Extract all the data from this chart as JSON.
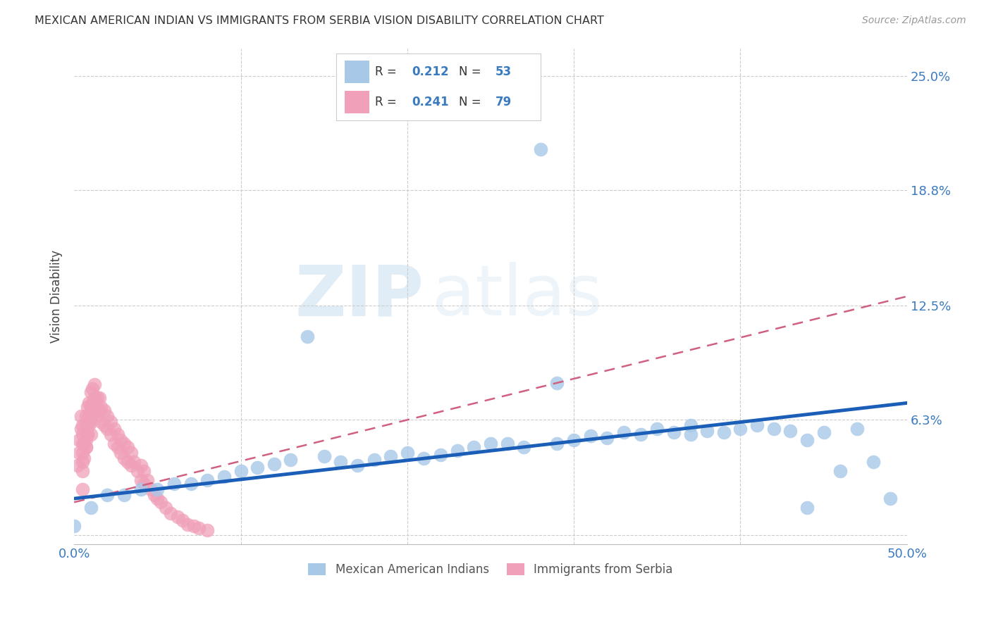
{
  "title": "MEXICAN AMERICAN INDIAN VS IMMIGRANTS FROM SERBIA VISION DISABILITY CORRELATION CHART",
  "source": "Source: ZipAtlas.com",
  "ylabel": "Vision Disability",
  "xlim": [
    0.0,
    0.5
  ],
  "ylim": [
    -0.005,
    0.265
  ],
  "ytick_values": [
    0.0,
    0.063,
    0.125,
    0.188,
    0.25
  ],
  "ytick_labels": [
    "",
    "6.3%",
    "12.5%",
    "18.8%",
    "25.0%"
  ],
  "blue_R": 0.212,
  "blue_N": 53,
  "pink_R": 0.241,
  "pink_N": 79,
  "blue_color": "#a8c8e8",
  "pink_color": "#f0a0b8",
  "blue_line_color": "#1a5eb8",
  "pink_line_color": "#d06080",
  "watermark_zip": "ZIP",
  "watermark_atlas": "atlas",
  "legend_label_blue": "Mexican American Indians",
  "legend_label_pink": "Immigrants from Serbia",
  "blue_line_x0": 0.0,
  "blue_line_y0": 0.02,
  "blue_line_x1": 0.5,
  "blue_line_y1": 0.072,
  "pink_line_x0": 0.0,
  "pink_line_y0": 0.018,
  "pink_line_x1": 0.5,
  "pink_line_y1": 0.13,
  "blue_scatter_x": [
    0.28,
    0.14,
    0.29,
    0.03,
    0.05,
    0.07,
    0.08,
    0.09,
    0.1,
    0.11,
    0.12,
    0.13,
    0.15,
    0.16,
    0.17,
    0.18,
    0.19,
    0.2,
    0.21,
    0.22,
    0.23,
    0.24,
    0.25,
    0.26,
    0.27,
    0.29,
    0.3,
    0.31,
    0.32,
    0.33,
    0.34,
    0.35,
    0.36,
    0.37,
    0.38,
    0.39,
    0.4,
    0.41,
    0.42,
    0.43,
    0.44,
    0.45,
    0.46,
    0.47,
    0.48,
    0.49,
    0.02,
    0.04,
    0.06,
    0.01,
    0.0,
    0.37,
    0.44
  ],
  "blue_scatter_y": [
    0.21,
    0.108,
    0.083,
    0.022,
    0.025,
    0.028,
    0.03,
    0.032,
    0.035,
    0.037,
    0.039,
    0.041,
    0.043,
    0.04,
    0.038,
    0.041,
    0.043,
    0.045,
    0.042,
    0.044,
    0.046,
    0.048,
    0.05,
    0.05,
    0.048,
    0.05,
    0.052,
    0.054,
    0.053,
    0.056,
    0.055,
    0.058,
    0.056,
    0.055,
    0.057,
    0.056,
    0.058,
    0.06,
    0.058,
    0.057,
    0.015,
    0.056,
    0.035,
    0.058,
    0.04,
    0.02,
    0.022,
    0.025,
    0.028,
    0.015,
    0.005,
    0.06,
    0.052
  ],
  "pink_scatter_x": [
    0.005,
    0.005,
    0.005,
    0.005,
    0.005,
    0.005,
    0.005,
    0.007,
    0.007,
    0.007,
    0.007,
    0.008,
    0.008,
    0.008,
    0.009,
    0.009,
    0.01,
    0.01,
    0.01,
    0.01,
    0.011,
    0.011,
    0.012,
    0.012,
    0.013,
    0.013,
    0.014,
    0.014,
    0.015,
    0.015,
    0.016,
    0.016,
    0.018,
    0.018,
    0.02,
    0.02,
    0.022,
    0.022,
    0.024,
    0.024,
    0.026,
    0.026,
    0.028,
    0.028,
    0.03,
    0.03,
    0.032,
    0.032,
    0.034,
    0.034,
    0.036,
    0.038,
    0.04,
    0.04,
    0.042,
    0.042,
    0.044,
    0.046,
    0.048,
    0.05,
    0.052,
    0.055,
    0.058,
    0.062,
    0.065,
    0.068,
    0.072,
    0.075,
    0.08,
    0.002,
    0.003,
    0.003,
    0.004,
    0.004,
    0.006,
    0.006,
    0.007,
    0.008,
    0.009
  ],
  "pink_scatter_y": [
    0.06,
    0.055,
    0.05,
    0.045,
    0.04,
    0.035,
    0.025,
    0.065,
    0.058,
    0.052,
    0.048,
    0.07,
    0.062,
    0.055,
    0.072,
    0.065,
    0.078,
    0.07,
    0.062,
    0.055,
    0.08,
    0.072,
    0.082,
    0.075,
    0.072,
    0.065,
    0.075,
    0.068,
    0.075,
    0.068,
    0.07,
    0.062,
    0.068,
    0.06,
    0.065,
    0.058,
    0.062,
    0.055,
    0.058,
    0.05,
    0.055,
    0.048,
    0.052,
    0.045,
    0.05,
    0.042,
    0.048,
    0.04,
    0.045,
    0.038,
    0.04,
    0.035,
    0.038,
    0.03,
    0.035,
    0.028,
    0.03,
    0.025,
    0.022,
    0.02,
    0.018,
    0.015,
    0.012,
    0.01,
    0.008,
    0.006,
    0.005,
    0.004,
    0.003,
    0.038,
    0.045,
    0.052,
    0.058,
    0.065,
    0.05,
    0.042,
    0.048,
    0.055,
    0.06
  ]
}
